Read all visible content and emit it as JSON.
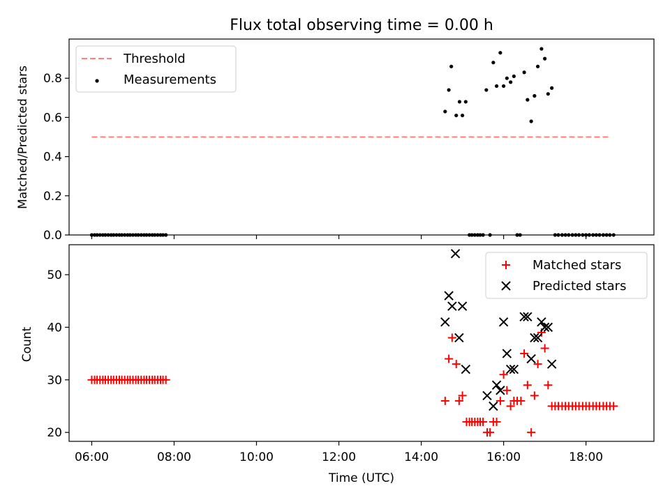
{
  "title": "Flux total observing time = 0.00 h",
  "x_axis": {
    "label": "Time (UTC)",
    "range_hours": [
      5.45,
      19.65
    ],
    "ticks": [
      {
        "value": 6,
        "label": "06:00"
      },
      {
        "value": 8,
        "label": "08:00"
      },
      {
        "value": 10,
        "label": "10:00"
      },
      {
        "value": 12,
        "label": "12:00"
      },
      {
        "value": 14,
        "label": "14:00"
      },
      {
        "value": 16,
        "label": "16:00"
      },
      {
        "value": 18,
        "label": "18:00"
      }
    ]
  },
  "colors": {
    "threshold": "#ff7f7f",
    "measurements": "#000000",
    "matched": "#ff0000",
    "predicted": "#000000"
  },
  "chart_data": [
    {
      "type": "scatter",
      "ylabel": "Matched/Predicted stars",
      "ylim": [
        0,
        1.0
      ],
      "yticks": [
        {
          "value": 0.0,
          "label": "0.0"
        },
        {
          "value": 0.2,
          "label": "0.2"
        },
        {
          "value": 0.4,
          "label": "0.4"
        },
        {
          "value": 0.6,
          "label": "0.6"
        },
        {
          "value": 0.8,
          "label": "0.8"
        }
      ],
      "legend": {
        "placement": "upper-left",
        "entries": [
          "Threshold",
          "Measurements"
        ]
      },
      "threshold": {
        "name": "Threshold",
        "y": 0.5,
        "x_range": [
          6.0,
          18.6
        ]
      },
      "measurements": {
        "name": "Measurements",
        "points": [
          [
            6.0,
            0
          ],
          [
            6.07,
            0
          ],
          [
            6.13,
            0
          ],
          [
            6.2,
            0
          ],
          [
            6.27,
            0
          ],
          [
            6.33,
            0
          ],
          [
            6.4,
            0
          ],
          [
            6.47,
            0
          ],
          [
            6.53,
            0
          ],
          [
            6.6,
            0
          ],
          [
            6.67,
            0
          ],
          [
            6.73,
            0
          ],
          [
            6.8,
            0
          ],
          [
            6.87,
            0
          ],
          [
            6.93,
            0
          ],
          [
            7.0,
            0
          ],
          [
            7.07,
            0
          ],
          [
            7.13,
            0
          ],
          [
            7.2,
            0
          ],
          [
            7.27,
            0
          ],
          [
            7.33,
            0
          ],
          [
            7.4,
            0
          ],
          [
            7.47,
            0
          ],
          [
            7.53,
            0
          ],
          [
            7.6,
            0
          ],
          [
            7.67,
            0
          ],
          [
            7.73,
            0
          ],
          [
            7.8,
            0
          ],
          [
            14.58,
            0.63
          ],
          [
            14.67,
            0.74
          ],
          [
            14.73,
            0.86
          ],
          [
            14.85,
            0.61
          ],
          [
            14.93,
            0.68
          ],
          [
            15.0,
            0.61
          ],
          [
            15.08,
            0.68
          ],
          [
            15.17,
            0
          ],
          [
            15.23,
            0
          ],
          [
            15.3,
            0
          ],
          [
            15.37,
            0
          ],
          [
            15.43,
            0
          ],
          [
            15.5,
            0
          ],
          [
            15.58,
            0.74
          ],
          [
            15.67,
            0
          ],
          [
            15.75,
            0.88
          ],
          [
            15.83,
            0.76
          ],
          [
            15.92,
            0.93
          ],
          [
            16.0,
            0.76
          ],
          [
            16.08,
            0.8
          ],
          [
            16.17,
            0.78
          ],
          [
            16.25,
            0.81
          ],
          [
            16.33,
            0
          ],
          [
            16.4,
            0
          ],
          [
            16.5,
            0.83
          ],
          [
            16.58,
            0.69
          ],
          [
            16.67,
            0.58
          ],
          [
            16.75,
            0.71
          ],
          [
            16.83,
            0.86
          ],
          [
            16.92,
            0.95
          ],
          [
            17.0,
            0.9
          ],
          [
            17.08,
            0.72
          ],
          [
            17.17,
            0.75
          ],
          [
            17.25,
            0
          ],
          [
            17.33,
            0
          ],
          [
            17.42,
            0
          ],
          [
            17.5,
            0
          ],
          [
            17.58,
            0
          ],
          [
            17.67,
            0
          ],
          [
            17.75,
            0
          ],
          [
            17.83,
            0
          ],
          [
            17.92,
            0
          ],
          [
            18.0,
            0
          ],
          [
            18.08,
            0
          ],
          [
            18.17,
            0
          ],
          [
            18.25,
            0
          ],
          [
            18.33,
            0
          ],
          [
            18.42,
            0
          ],
          [
            18.5,
            0
          ],
          [
            18.58,
            0
          ],
          [
            18.67,
            0
          ]
        ]
      }
    },
    {
      "type": "scatter",
      "xlabel": "Time (UTC)",
      "ylabel": "Count",
      "ylim": [
        18.3,
        55.7
      ],
      "yticks": [
        {
          "value": 20,
          "label": "20"
        },
        {
          "value": 30,
          "label": "30"
        },
        {
          "value": 40,
          "label": "40"
        },
        {
          "value": 50,
          "label": "50"
        }
      ],
      "legend": {
        "placement": "upper-right",
        "entries": [
          "Matched stars",
          "Predicted stars"
        ]
      },
      "series": [
        {
          "name": "Matched stars",
          "marker": "plus",
          "points": [
            [
              6.0,
              30
            ],
            [
              6.07,
              30
            ],
            [
              6.13,
              30
            ],
            [
              6.2,
              30
            ],
            [
              6.27,
              30
            ],
            [
              6.33,
              30
            ],
            [
              6.4,
              30
            ],
            [
              6.47,
              30
            ],
            [
              6.53,
              30
            ],
            [
              6.6,
              30
            ],
            [
              6.67,
              30
            ],
            [
              6.73,
              30
            ],
            [
              6.8,
              30
            ],
            [
              6.87,
              30
            ],
            [
              6.93,
              30
            ],
            [
              7.0,
              30
            ],
            [
              7.07,
              30
            ],
            [
              7.13,
              30
            ],
            [
              7.2,
              30
            ],
            [
              7.27,
              30
            ],
            [
              7.33,
              30
            ],
            [
              7.4,
              30
            ],
            [
              7.47,
              30
            ],
            [
              7.53,
              30
            ],
            [
              7.6,
              30
            ],
            [
              7.67,
              30
            ],
            [
              7.73,
              30
            ],
            [
              7.8,
              30
            ],
            [
              14.58,
              26
            ],
            [
              14.67,
              34
            ],
            [
              14.75,
              38
            ],
            [
              14.85,
              33
            ],
            [
              14.92,
              26
            ],
            [
              15.0,
              27
            ],
            [
              15.1,
              22
            ],
            [
              15.17,
              22
            ],
            [
              15.23,
              22
            ],
            [
              15.3,
              22
            ],
            [
              15.37,
              22
            ],
            [
              15.43,
              22
            ],
            [
              15.5,
              22
            ],
            [
              15.6,
              20
            ],
            [
              15.67,
              20
            ],
            [
              15.75,
              22
            ],
            [
              15.83,
              22
            ],
            [
              15.92,
              26
            ],
            [
              16.0,
              31
            ],
            [
              16.08,
              28
            ],
            [
              16.17,
              25
            ],
            [
              16.25,
              26
            ],
            [
              16.33,
              26
            ],
            [
              16.42,
              26
            ],
            [
              16.5,
              35
            ],
            [
              16.58,
              29
            ],
            [
              16.67,
              20
            ],
            [
              16.75,
              27
            ],
            [
              16.83,
              33
            ],
            [
              16.92,
              39
            ],
            [
              17.0,
              36
            ],
            [
              17.08,
              29
            ],
            [
              17.17,
              25
            ],
            [
              17.25,
              25
            ],
            [
              17.33,
              25
            ],
            [
              17.42,
              25
            ],
            [
              17.5,
              25
            ],
            [
              17.58,
              25
            ],
            [
              17.67,
              25
            ],
            [
              17.75,
              25
            ],
            [
              17.83,
              25
            ],
            [
              17.92,
              25
            ],
            [
              18.0,
              25
            ],
            [
              18.08,
              25
            ],
            [
              18.17,
              25
            ],
            [
              18.25,
              25
            ],
            [
              18.33,
              25
            ],
            [
              18.42,
              25
            ],
            [
              18.5,
              25
            ],
            [
              18.58,
              25
            ],
            [
              18.67,
              25
            ]
          ]
        },
        {
          "name": "Predicted stars",
          "marker": "x",
          "points": [
            [
              14.58,
              41
            ],
            [
              14.67,
              46
            ],
            [
              14.75,
              44
            ],
            [
              14.83,
              54
            ],
            [
              14.92,
              38
            ],
            [
              15.0,
              44
            ],
            [
              15.08,
              32
            ],
            [
              15.6,
              27
            ],
            [
              15.75,
              25
            ],
            [
              15.83,
              29
            ],
            [
              15.92,
              28
            ],
            [
              16.0,
              41
            ],
            [
              16.08,
              35
            ],
            [
              16.17,
              32
            ],
            [
              16.25,
              32
            ],
            [
              16.5,
              42
            ],
            [
              16.58,
              42
            ],
            [
              16.67,
              34
            ],
            [
              16.75,
              38
            ],
            [
              16.83,
              38
            ],
            [
              16.92,
              41
            ],
            [
              17.0,
              40
            ],
            [
              17.08,
              40
            ],
            [
              17.17,
              33
            ]
          ]
        }
      ]
    }
  ]
}
